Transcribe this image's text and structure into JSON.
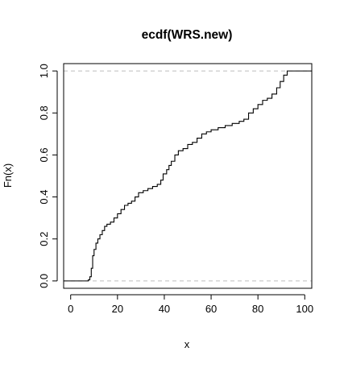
{
  "chart_data": {
    "type": "line",
    "title": "ecdf(WRS.new)",
    "xlabel": "x",
    "ylabel": "Fn(x)",
    "xlim": [
      -3,
      103
    ],
    "ylim": [
      -0.035,
      1.035
    ],
    "x_ticks": [
      0,
      20,
      40,
      60,
      80,
      100
    ],
    "x_tick_labels": [
      "0",
      "20",
      "40",
      "60",
      "80",
      "100"
    ],
    "y_ticks": [
      0.0,
      0.2,
      0.4,
      0.6,
      0.8,
      1.0
    ],
    "y_tick_labels": [
      "0.0",
      "0.2",
      "0.4",
      "0.6",
      "0.8",
      "1.0"
    ],
    "reference_lines": [
      0,
      1
    ],
    "grid": false,
    "legend": "none",
    "step_function": true,
    "series": [
      {
        "x": [
          -3,
          7.5,
          8.2,
          8.8,
          9.4,
          10.0,
          10.8,
          11.6,
          12.5,
          13.5,
          14.5,
          15.5,
          17.0,
          18.5,
          20.0,
          21.5,
          23.0,
          24.5,
          26.0,
          27.5,
          29.0,
          31.0,
          33.0,
          35.0,
          37.0,
          38.5,
          39.5,
          41.0,
          42.0,
          43.0,
          44.5,
          46.0,
          48.0,
          50.0,
          52.0,
          54.0,
          56.0,
          58.0,
          60.0,
          63.0,
          66.0,
          69.0,
          72.0,
          74.0,
          76.0,
          78.0,
          80.0,
          82.0,
          84.0,
          86.0,
          88.0,
          89.5,
          91.0,
          92.5,
          103
        ],
        "y": [
          0.0,
          0.005,
          0.02,
          0.06,
          0.12,
          0.15,
          0.18,
          0.2,
          0.22,
          0.24,
          0.26,
          0.27,
          0.28,
          0.3,
          0.32,
          0.34,
          0.36,
          0.37,
          0.38,
          0.4,
          0.42,
          0.43,
          0.44,
          0.45,
          0.46,
          0.48,
          0.51,
          0.53,
          0.55,
          0.57,
          0.6,
          0.62,
          0.63,
          0.65,
          0.66,
          0.68,
          0.7,
          0.71,
          0.72,
          0.73,
          0.74,
          0.75,
          0.76,
          0.77,
          0.8,
          0.82,
          0.84,
          0.86,
          0.87,
          0.89,
          0.92,
          0.95,
          0.98,
          1.0,
          1.0
        ]
      }
    ],
    "colors": {
      "line": "#000000",
      "reference": "#bebebe",
      "frame": "#000000"
    }
  }
}
